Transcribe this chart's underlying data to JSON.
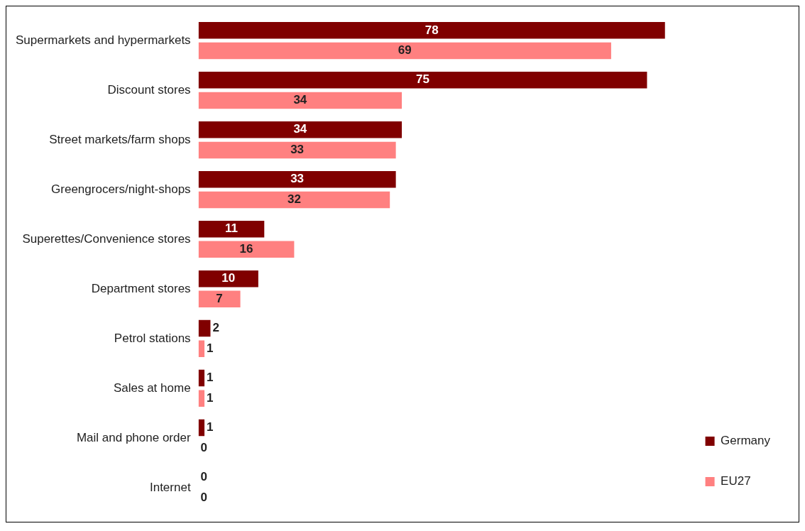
{
  "chart_data": {
    "type": "bar",
    "orientation": "horizontal",
    "categories": [
      "Supermarkets and hypermarkets",
      "Discount stores",
      "Street markets/farm shops",
      "Greengrocers/night-shops",
      "Superettes/Convenience stores",
      "Department stores",
      "Petrol stations",
      "Sales at home",
      "Mail and phone order",
      "Internet"
    ],
    "series": [
      {
        "name": "Germany",
        "color": "#800000",
        "values": [
          78,
          75,
          34,
          33,
          11,
          10,
          2,
          1,
          1,
          0
        ]
      },
      {
        "name": "EU27",
        "color": "#ff8080",
        "values": [
          69,
          34,
          33,
          32,
          16,
          7,
          1,
          1,
          0,
          0
        ]
      }
    ],
    "data_labels": true,
    "legend": "right"
  }
}
